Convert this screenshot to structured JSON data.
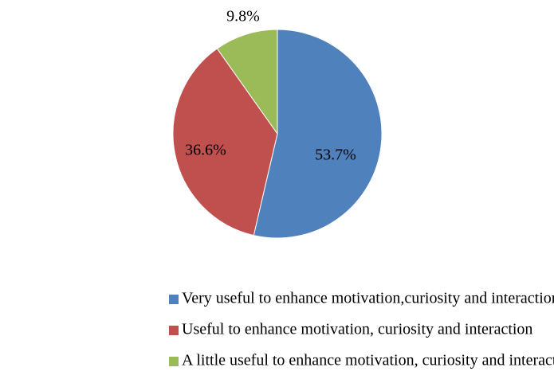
{
  "chart_data": {
    "type": "pie",
    "categories": [
      "Very useful to enhance motivation,curiosity and interaction",
      "Useful to enhance motivation, curiosity and interaction",
      "A little useful to enhance motivation, curiosity and interaction"
    ],
    "values": [
      53.7,
      36.6,
      9.8
    ],
    "value_labels": [
      "53.7%",
      "36.6%",
      "9.8%"
    ],
    "colors": [
      "#4f81bd",
      "#c0504d",
      "#9bbb59"
    ],
    "legend": "bottom"
  }
}
